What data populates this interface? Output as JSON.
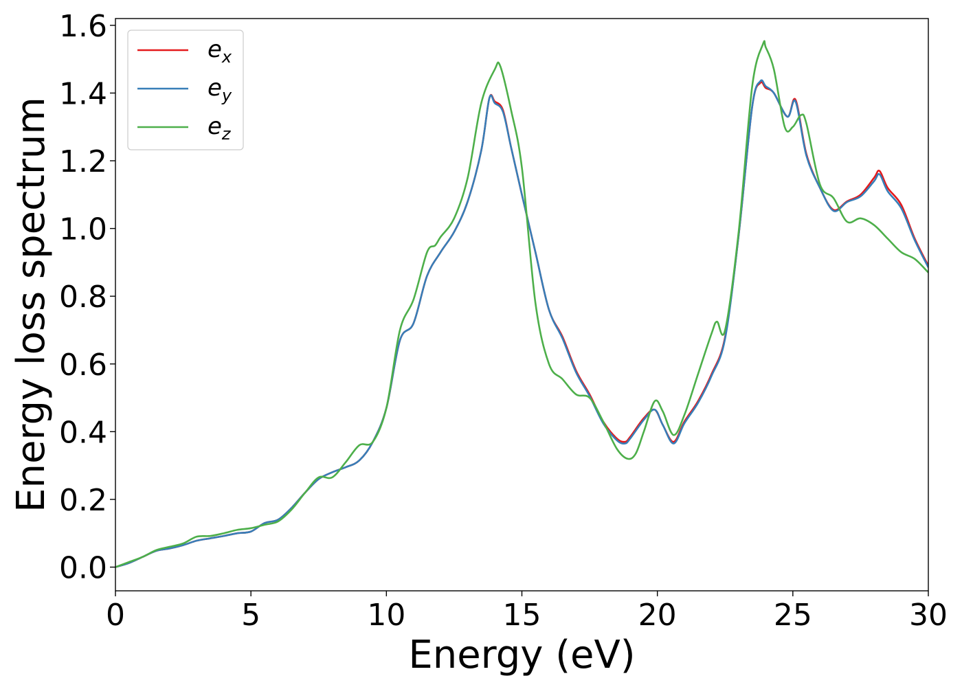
{
  "chart_data": {
    "type": "line",
    "title": "",
    "xlabel": "Energy (eV)",
    "ylabel": "Energy loss spectrum",
    "xlim": [
      0,
      30
    ],
    "ylim": [
      -0.07,
      1.62
    ],
    "xticks": [
      "0",
      "5",
      "10",
      "15",
      "20",
      "25",
      "30"
    ],
    "yticks": [
      "0.0",
      "0.2",
      "0.4",
      "0.6",
      "0.8",
      "1.0",
      "1.2",
      "1.4",
      "1.6"
    ],
    "grid": false,
    "legend_position": "top-left",
    "colors": {
      "e_x": "#e41a1c",
      "e_y": "#377eb8",
      "e_z": "#4daf4a"
    },
    "series": [
      {
        "name": "e_x",
        "legend_base": "e",
        "legend_sub": "x",
        "x": [
          0,
          0.5,
          1,
          1.5,
          2,
          2.5,
          3,
          3.5,
          4,
          4.5,
          5,
          5.5,
          6,
          6.5,
          7,
          7.5,
          8,
          8.5,
          9,
          9.5,
          10,
          10.5,
          11,
          11.5,
          12,
          12.5,
          13,
          13.5,
          13.8,
          14,
          14.3,
          14.6,
          15,
          15.5,
          16,
          16.5,
          17,
          17.5,
          18,
          18.5,
          18.8,
          19,
          19.5,
          19.9,
          20.2,
          20.6,
          21,
          21.5,
          22,
          22.5,
          23,
          23.5,
          23.8,
          24,
          24.3,
          24.8,
          25.1,
          25.5,
          26,
          26.5,
          27,
          27.5,
          28,
          28.2,
          28.5,
          29,
          29.5,
          30
        ],
        "y": [
          0,
          0.012,
          0.03,
          0.048,
          0.055,
          0.065,
          0.078,
          0.085,
          0.092,
          0.1,
          0.105,
          0.13,
          0.14,
          0.175,
          0.22,
          0.26,
          0.28,
          0.295,
          0.315,
          0.37,
          0.47,
          0.67,
          0.72,
          0.86,
          0.93,
          0.99,
          1.08,
          1.23,
          1.385,
          1.375,
          1.35,
          1.24,
          1.1,
          0.93,
          0.76,
          0.68,
          0.58,
          0.51,
          0.43,
          0.38,
          0.37,
          0.385,
          0.44,
          0.465,
          0.42,
          0.37,
          0.43,
          0.49,
          0.57,
          0.68,
          0.98,
          1.36,
          1.43,
          1.415,
          1.4,
          1.33,
          1.38,
          1.22,
          1.12,
          1.055,
          1.08,
          1.1,
          1.15,
          1.17,
          1.12,
          1.07,
          0.97,
          0.89
        ]
      },
      {
        "name": "e_y",
        "legend_base": "e",
        "legend_sub": "y",
        "x": [
          0,
          0.5,
          1,
          1.5,
          2,
          2.5,
          3,
          3.5,
          4,
          4.5,
          5,
          5.5,
          6,
          6.5,
          7,
          7.5,
          8,
          8.5,
          9,
          9.5,
          10,
          10.5,
          11,
          11.5,
          12,
          12.5,
          13,
          13.5,
          13.8,
          14,
          14.3,
          14.6,
          15,
          15.5,
          16,
          16.5,
          17,
          17.5,
          18,
          18.5,
          18.8,
          19,
          19.5,
          19.9,
          20.2,
          20.6,
          21,
          21.5,
          22,
          22.5,
          23,
          23.5,
          23.8,
          24,
          24.3,
          24.8,
          25.1,
          25.5,
          26,
          26.5,
          27,
          27.5,
          28,
          28.2,
          28.5,
          29,
          29.5,
          30
        ],
        "y": [
          0,
          0.012,
          0.03,
          0.048,
          0.055,
          0.065,
          0.078,
          0.085,
          0.092,
          0.1,
          0.105,
          0.13,
          0.14,
          0.175,
          0.22,
          0.26,
          0.28,
          0.295,
          0.315,
          0.37,
          0.47,
          0.67,
          0.72,
          0.86,
          0.93,
          0.99,
          1.08,
          1.23,
          1.385,
          1.37,
          1.345,
          1.24,
          1.1,
          0.93,
          0.76,
          0.675,
          0.575,
          0.505,
          0.425,
          0.375,
          0.365,
          0.38,
          0.435,
          0.465,
          0.42,
          0.365,
          0.425,
          0.485,
          0.565,
          0.675,
          0.98,
          1.36,
          1.435,
          1.42,
          1.4,
          1.33,
          1.375,
          1.215,
          1.12,
          1.052,
          1.078,
          1.095,
          1.14,
          1.16,
          1.11,
          1.06,
          0.965,
          0.885
        ]
      },
      {
        "name": "e_z",
        "legend_base": "e",
        "legend_sub": "z",
        "x": [
          0,
          0.5,
          1,
          1.5,
          2,
          2.5,
          3,
          3.5,
          4,
          4.5,
          5,
          5.5,
          6,
          6.5,
          7,
          7.5,
          8,
          8.5,
          9,
          9.5,
          10,
          10.5,
          11,
          11.5,
          11.8,
          12,
          12.5,
          13,
          13.5,
          14,
          14.2,
          14.6,
          15,
          15.5,
          16,
          16.5,
          17,
          17.5,
          18,
          18.5,
          18.9,
          19.2,
          19.5,
          19.9,
          20.2,
          20.6,
          21,
          21.5,
          22,
          22.2,
          22.5,
          23,
          23.5,
          23.9,
          24,
          24.3,
          24.7,
          25,
          25.3,
          25.5,
          26,
          26.5,
          27,
          27.5,
          28,
          28.5,
          29,
          29.5,
          30
        ],
        "y": [
          0,
          0.015,
          0.03,
          0.05,
          0.06,
          0.07,
          0.09,
          0.092,
          0.1,
          0.11,
          0.115,
          0.125,
          0.135,
          0.17,
          0.22,
          0.265,
          0.265,
          0.31,
          0.36,
          0.37,
          0.47,
          0.7,
          0.79,
          0.93,
          0.95,
          0.975,
          1.03,
          1.15,
          1.37,
          1.47,
          1.48,
          1.35,
          1.18,
          0.78,
          0.6,
          0.555,
          0.51,
          0.5,
          0.43,
          0.35,
          0.32,
          0.335,
          0.4,
          0.49,
          0.46,
          0.39,
          0.45,
          0.57,
          0.69,
          0.725,
          0.7,
          0.99,
          1.42,
          1.545,
          1.535,
          1.47,
          1.3,
          1.3,
          1.335,
          1.31,
          1.13,
          1.09,
          1.02,
          1.03,
          1.01,
          0.97,
          0.93,
          0.91,
          0.87
        ]
      }
    ]
  }
}
